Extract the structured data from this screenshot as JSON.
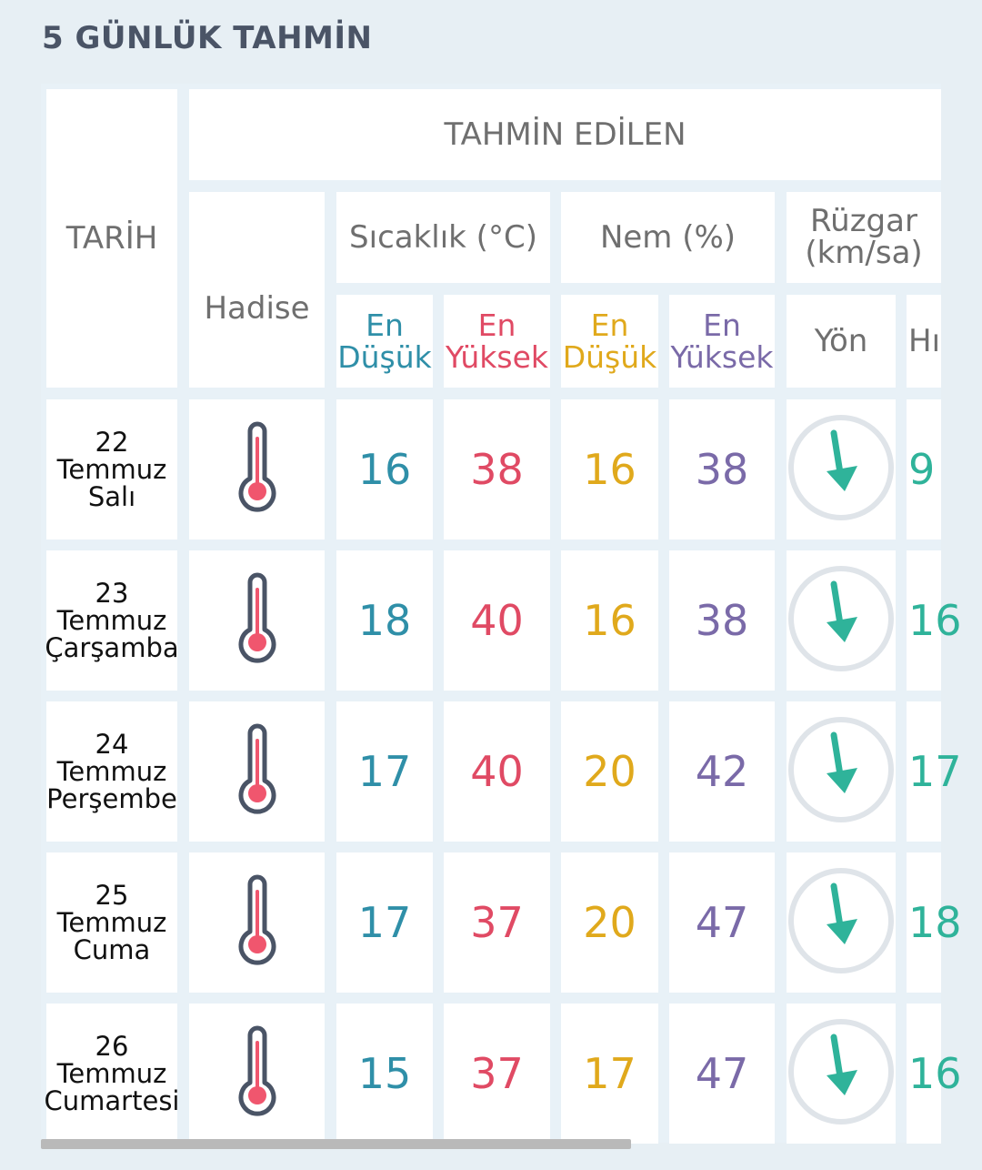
{
  "title": "5 GÜNLÜK TAHMİN",
  "header": {
    "tarih": "TARİH",
    "tahmin_edilen": "TAHMİN EDİLEN",
    "hadise": "Hadise",
    "sicaklik": "Sıcaklık (°C)",
    "nem": "Nem (%)",
    "ruzgar_line1": "Rüzgar",
    "ruzgar_line2": "(km/sa)",
    "en": "En",
    "dusuk": "Düşük",
    "yuksek": "Yüksek",
    "yon": "Yön",
    "hiz_partial": "Hı"
  },
  "rows": [
    {
      "day": "22",
      "month": "Temmuz",
      "weekday": "Salı",
      "temp_min": "16",
      "temp_max": "38",
      "hum_min": "16",
      "hum_max": "38",
      "wind_speed_partial": "9"
    },
    {
      "day": "23",
      "month": "Temmuz",
      "weekday": "Çarşamba",
      "temp_min": "18",
      "temp_max": "40",
      "hum_min": "16",
      "hum_max": "38",
      "wind_speed_partial": "16"
    },
    {
      "day": "24",
      "month": "Temmuz",
      "weekday": "Perşembe",
      "temp_min": "17",
      "temp_max": "40",
      "hum_min": "20",
      "hum_max": "42",
      "wind_speed_partial": "17"
    },
    {
      "day": "25",
      "month": "Temmuz",
      "weekday": "Cuma",
      "temp_min": "17",
      "temp_max": "37",
      "hum_min": "20",
      "hum_max": "47",
      "wind_speed_partial": "18"
    },
    {
      "day": "26",
      "month": "Temmuz",
      "weekday": "Cumartesi",
      "temp_min": "15",
      "temp_max": "37",
      "hum_min": "17",
      "hum_max": "47",
      "wind_speed_partial": "16"
    }
  ],
  "icons": {
    "hadise": "thermometer-icon",
    "wind_direction": "wind-direction-arrow-icon"
  },
  "colors": {
    "temp_min": "#2f8fa8",
    "temp_max": "#e04a64",
    "hum_min": "#e0a91c",
    "hum_max": "#7a6aa8",
    "arrow": "#2fb39a"
  }
}
